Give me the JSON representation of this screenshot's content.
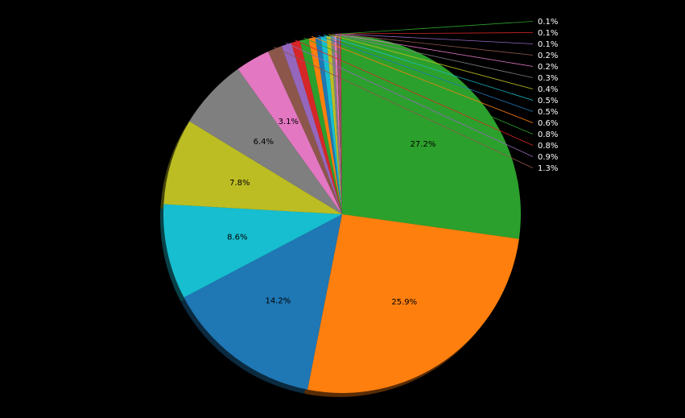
{
  "chart_data": {
    "type": "pie",
    "title": "",
    "start_angle_deg": 90,
    "direction": "clockwise",
    "shadow": true,
    "background": "#000000",
    "slices": [
      {
        "value": 27.2,
        "label": "27.2%",
        "color": "#2ca02c"
      },
      {
        "value": 25.9,
        "label": "25.9%",
        "color": "#ff7f0e"
      },
      {
        "value": 14.2,
        "label": "14.2%",
        "color": "#1f77b4"
      },
      {
        "value": 8.6,
        "label": "8.6%",
        "color": "#17becf"
      },
      {
        "value": 7.8,
        "label": "7.8%",
        "color": "#bcbd22"
      },
      {
        "value": 6.4,
        "label": "6.4%",
        "color": "#7f7f7f"
      },
      {
        "value": 3.1,
        "label": "3.1%",
        "color": "#e377c2"
      },
      {
        "value": 1.3,
        "label": "1.3%",
        "color": "#8c564b"
      },
      {
        "value": 0.9,
        "label": "0.9%",
        "color": "#9467bd"
      },
      {
        "value": 0.8,
        "label": "0.8%",
        "color": "#d62728"
      },
      {
        "value": 0.8,
        "label": "0.8%",
        "color": "#2ca02c"
      },
      {
        "value": 0.6,
        "label": "0.6%",
        "color": "#ff7f0e"
      },
      {
        "value": 0.5,
        "label": "0.5%",
        "color": "#1f77b4"
      },
      {
        "value": 0.5,
        "label": "0.5%",
        "color": "#17becf"
      },
      {
        "value": 0.4,
        "label": "0.4%",
        "color": "#bcbd22"
      },
      {
        "value": 0.3,
        "label": "0.3%",
        "color": "#7f7f7f"
      },
      {
        "value": 0.2,
        "label": "0.2%",
        "color": "#e377c2"
      },
      {
        "value": 0.2,
        "label": "0.2%",
        "color": "#8c564b"
      },
      {
        "value": 0.1,
        "label": "0.1%",
        "color": "#9467bd"
      },
      {
        "value": 0.1,
        "label": "0.1%",
        "color": "#d62728"
      },
      {
        "value": 0.1,
        "label": "0.1%",
        "color": "#2ca02c"
      }
    ]
  }
}
